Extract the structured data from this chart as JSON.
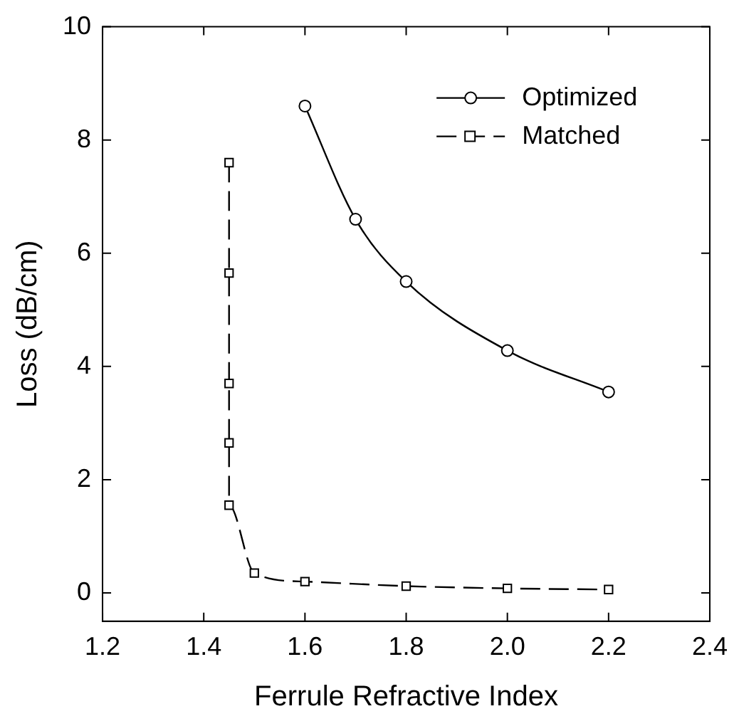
{
  "chart_data": {
    "type": "line",
    "xlabel": "Ferrule Refractive Index",
    "ylabel": "Loss (dB/cm)",
    "xlim": [
      1.2,
      2.4
    ],
    "xticks": [
      {
        "value": 1.2,
        "label": "1.2"
      },
      {
        "value": 1.4,
        "label": "1.4"
      },
      {
        "value": 1.6,
        "label": "1.6"
      },
      {
        "value": 1.8,
        "label": "1.8"
      },
      {
        "value": 2.0,
        "label": "2.0"
      },
      {
        "value": 2.2,
        "label": "2.2"
      },
      {
        "value": 2.4,
        "label": "2.4"
      }
    ],
    "ylim": [
      -0.5,
      10
    ],
    "yticks": [
      0,
      2,
      4,
      6,
      8,
      10
    ],
    "grid": false,
    "legend": "top right",
    "series": [
      {
        "name": "Optimized",
        "color": "#000000",
        "marker": "circle",
        "line_style": "solid",
        "x": [
          1.6,
          1.7,
          1.8,
          2.0,
          2.2
        ],
        "values": [
          8.6,
          6.6,
          5.5,
          4.28,
          3.55
        ]
      },
      {
        "name": "Matched",
        "color": "#000000",
        "marker": "square",
        "line_style": "dashed",
        "x": [
          1.45,
          1.45,
          1.45,
          1.45,
          1.45,
          1.5,
          1.6,
          1.8,
          2.0,
          2.2
        ],
        "values": [
          7.6,
          5.65,
          3.7,
          2.65,
          1.55,
          0.35,
          0.2,
          0.12,
          0.08,
          0.06
        ]
      }
    ]
  }
}
